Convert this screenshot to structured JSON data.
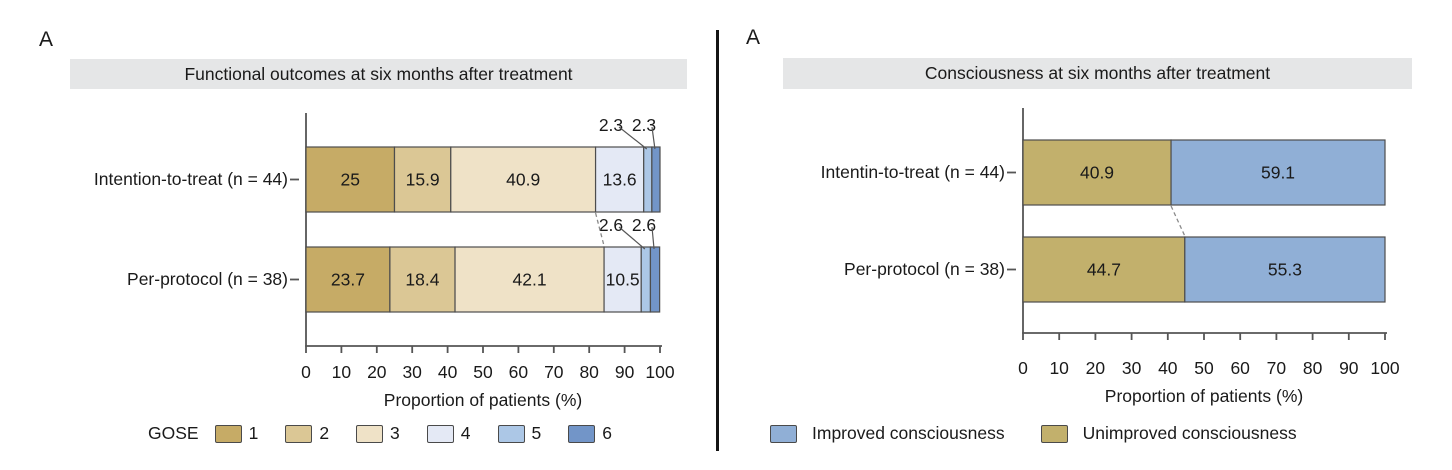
{
  "chart_data": [
    {
      "type": "bar",
      "orientation": "horizontal-stacked",
      "panel_label": "A",
      "title": "Functional outcomes at six months after treatment",
      "xlabel": "Proportion of patients (%)",
      "xlim": [
        0,
        100
      ],
      "x_ticks": [
        "0",
        "10",
        "20",
        "30",
        "40",
        "50",
        "60",
        "70",
        "80",
        "90",
        "100"
      ],
      "categories": [
        "Intention-to-treat (n = 44)",
        "Per-protocol (n = 38)"
      ],
      "series": [
        {
          "name": "1",
          "color": "#C6AB66",
          "values": [
            25,
            23.7
          ]
        },
        {
          "name": "2",
          "color": "#DBC795",
          "values": [
            15.9,
            18.4
          ]
        },
        {
          "name": "3",
          "color": "#EFE2C7",
          "values": [
            40.9,
            42.1
          ]
        },
        {
          "name": "4",
          "color": "#E4E9F5",
          "values": [
            13.6,
            10.5
          ]
        },
        {
          "name": "5",
          "color": "#ACC7E6",
          "values": [
            2.3,
            2.6
          ]
        },
        {
          "name": "6",
          "color": "#7295C8",
          "values": [
            2.3,
            2.6
          ]
        }
      ],
      "outside_label_threshold": 5,
      "connector_after_index": 3,
      "legend": {
        "title": "GOSE",
        "items": [
          {
            "label": "1",
            "color": "#C6AB66"
          },
          {
            "label": "2",
            "color": "#DBC795"
          },
          {
            "label": "3",
            "color": "#EFE2C7"
          },
          {
            "label": "4",
            "color": "#E4E9F5"
          },
          {
            "label": "5",
            "color": "#ACC7E6"
          },
          {
            "label": "6",
            "color": "#7295C8"
          }
        ]
      }
    },
    {
      "type": "bar",
      "orientation": "horizontal-stacked",
      "panel_label": "A",
      "title": "Consciousness at six months after treatment",
      "xlabel": "Proportion of patients (%)",
      "xlim": [
        0,
        100
      ],
      "x_ticks": [
        "0",
        "10",
        "20",
        "30",
        "40",
        "50",
        "60",
        "70",
        "80",
        "90",
        "100"
      ],
      "categories": [
        "Intentin-to-treat (n = 44)",
        "Per-protocol (n = 38)"
      ],
      "series": [
        {
          "name": "Unimproved consciousness",
          "color": "#C2B06C",
          "values": [
            40.9,
            44.7
          ]
        },
        {
          "name": "Improved consciousness",
          "color": "#90AFD6",
          "values": [
            59.1,
            55.3
          ]
        }
      ],
      "outside_label_threshold": 0,
      "connector_after_index": 1,
      "legend": {
        "title": "",
        "items": [
          {
            "label": "Improved consciousness",
            "color": "#90AFD6"
          },
          {
            "label": "Unimproved consciousness",
            "color": "#C2B06C"
          }
        ]
      }
    }
  ],
  "colors": {
    "strip_background": "#E5E6E7",
    "segment_border": "#4d4d4d",
    "axis": "#555555",
    "connector_dash": "#8a8a8a",
    "text": "#1a1a1a",
    "divider": "#141414"
  }
}
